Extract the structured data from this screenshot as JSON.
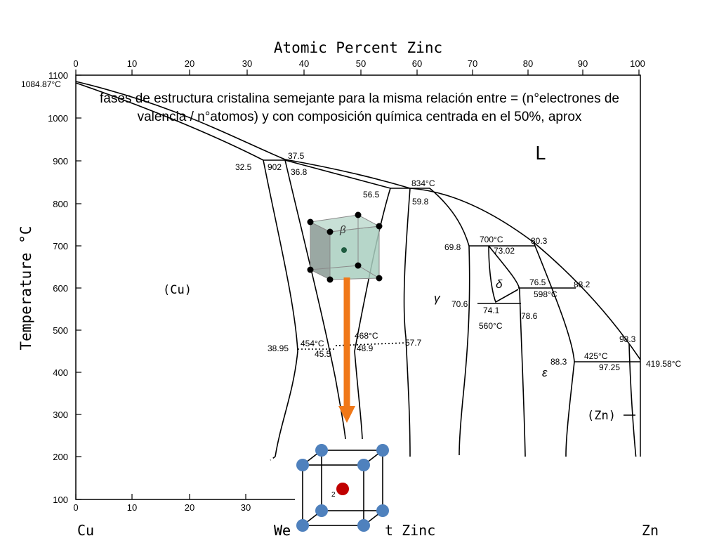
{
  "caption": {
    "line1": "fases de estructura cristalina semejante para la misma relación entre = (n°electrones de",
    "line2": "valencia / n°atomos) y con composición química centrada en el 50%, aprox"
  },
  "axes": {
    "top_title": "Atomic Percent Zinc",
    "bottom_title_left": "We",
    "bottom_title_right": "t Zinc",
    "y_title": "Temperature °C",
    "left_element": "Cu",
    "right_element": "Zn",
    "x_ticks": [
      "0",
      "10",
      "20",
      "30",
      "40",
      "50",
      "60",
      "70",
      "80",
      "90",
      "100"
    ],
    "y_ticks": [
      "1100",
      "1000",
      "900",
      "800",
      "700",
      "600",
      "500",
      "400",
      "300",
      "200",
      "100"
    ]
  },
  "labels": {
    "cu_melt": "1084.87°C",
    "liquid": "L",
    "cu_phase": "(Cu)",
    "zn_phase": "(Zn)",
    "beta": "β",
    "gamma": "γ",
    "delta": "δ",
    "epsilon": "ε",
    "p37_5": "37.5",
    "p32_5": "32.5",
    "p902": "902",
    "p36_8": "36.8",
    "p834": "834°C",
    "p56_5": "56.5",
    "p59_8": "59.8",
    "p700": "700°C",
    "p80_3": "80.3",
    "p69_8": "69.8",
    "p73_02": "73.02",
    "p76_5": "76.5",
    "p598": "598°C",
    "p88_2": "88.2",
    "p70_6": "70.6",
    "p74_1": "74.1",
    "p560": "560°C",
    "p78_6": "78.6",
    "p454": "454°C",
    "p468": "468°C",
    "p38_95": "38.95",
    "p45_5": "45.5",
    "p48_9": "48.9",
    "p57_7": "57.7",
    "p425": "425°C",
    "p97_25": "97.25",
    "p88_3": "88.3",
    "p98_3": "98.3",
    "p419": "419.58°C",
    "bcc_center": "2"
  },
  "colors": {
    "line": "#000000",
    "arrow": "#f07818",
    "cube_face": "#a9cfc0",
    "cube_face_dark": "#9aa8a3",
    "atom_corner": "#4f81bd",
    "atom_center": "#c00000"
  },
  "icons": {
    "beta_cell": "bcc-cube-icon",
    "bcc_unit_cell": "bcc-unit-cell-icon"
  }
}
